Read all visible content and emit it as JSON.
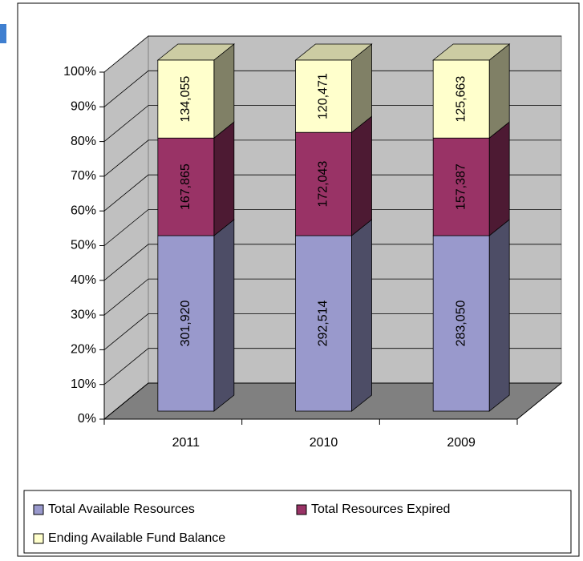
{
  "chart_data": {
    "type": "bar3d_stacked_percent",
    "categories": [
      "2011",
      "2010",
      "2009"
    ],
    "series": [
      {
        "name": "Total Available Resources",
        "color": "#9999cc",
        "values": [
          301920,
          292514,
          283050
        ],
        "value_labels": [
          "301,920",
          "292,514",
          "283,050"
        ]
      },
      {
        "name": "Total Resources Expired",
        "color": "#993366",
        "values": [
          167865,
          172043,
          157387
        ],
        "value_labels": [
          "167,865",
          "172,043",
          "157,387"
        ]
      },
      {
        "name": "Ending Available Fund Balance",
        "color": "#ffffcc",
        "values": [
          134055,
          120471,
          125663
        ],
        "value_labels": [
          "134,055",
          "120,471",
          "125,663"
        ]
      }
    ],
    "ylim": [
      0,
      100
    ],
    "yticks": [
      {
        "value": 0,
        "label": "0%"
      },
      {
        "value": 10,
        "label": "10%"
      },
      {
        "value": 20,
        "label": "20%"
      },
      {
        "value": 30,
        "label": "30%"
      },
      {
        "value": 40,
        "label": "40%"
      },
      {
        "value": 50,
        "label": "50%"
      },
      {
        "value": 60,
        "label": "60%"
      },
      {
        "value": 70,
        "label": "70%"
      },
      {
        "value": 80,
        "label": "80%"
      },
      {
        "value": 90,
        "label": "90%"
      },
      {
        "value": 100,
        "label": "100%"
      }
    ],
    "grid": true,
    "legend": "bottom"
  }
}
